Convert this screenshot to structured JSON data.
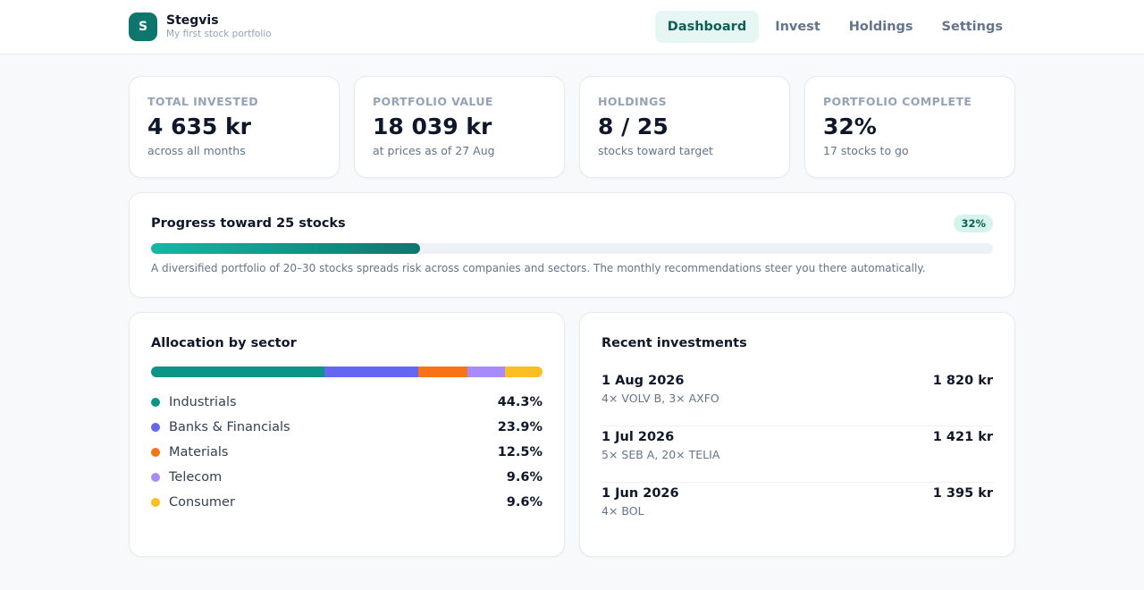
{
  "brand": {
    "initial": "S",
    "name": "Stegvis",
    "tagline": "My first stock portfolio"
  },
  "nav": {
    "items": [
      {
        "label": "Dashboard",
        "active": true
      },
      {
        "label": "Invest",
        "active": false
      },
      {
        "label": "Holdings",
        "active": false
      },
      {
        "label": "Settings",
        "active": false
      }
    ]
  },
  "stats": [
    {
      "label": "TOTAL INVESTED",
      "value": "4 635 kr",
      "note": "across all months"
    },
    {
      "label": "PORTFOLIO VALUE",
      "value": "18 039 kr",
      "note": "at prices as of 27 Aug"
    },
    {
      "label": "HOLDINGS",
      "value": "8 / 25",
      "note": "stocks toward target"
    },
    {
      "label": "PORTFOLIO COMPLETE",
      "value": "32%",
      "note": "17 stocks to go"
    }
  ],
  "progress": {
    "title": "Progress toward 25 stocks",
    "badge": "32%",
    "fraction": 0.32,
    "description": "A diversified portfolio of 20–30 stocks spreads risk across companies and sectors. The monthly recommendations steer you there automatically."
  },
  "allocation": {
    "title": "Allocation by sector",
    "sectors": [
      {
        "name": "Industrials",
        "value": "44.3%",
        "share": 44.3,
        "color": "#0d9488"
      },
      {
        "name": "Banks & Financials",
        "value": "23.9%",
        "share": 23.9,
        "color": "#6366f1"
      },
      {
        "name": "Materials",
        "value": "12.5%",
        "share": 12.5,
        "color": "#f97316"
      },
      {
        "name": "Telecom",
        "value": "9.6%",
        "share": 9.6,
        "color": "#a78bfa"
      },
      {
        "name": "Consumer",
        "value": "9.6%",
        "share": 9.6,
        "color": "#fbbf24"
      }
    ]
  },
  "recent": {
    "title": "Recent investments",
    "items": [
      {
        "date": "1 Aug 2026",
        "detail": "4× VOLV B, 3× AXFO",
        "amount": "1 820 kr"
      },
      {
        "date": "1 Jul 2026",
        "detail": "5× SEB A, 20× TELIA",
        "amount": "1 421 kr"
      },
      {
        "date": "1 Jun 2026",
        "detail": "4× BOL",
        "amount": "1 395 kr"
      }
    ]
  }
}
